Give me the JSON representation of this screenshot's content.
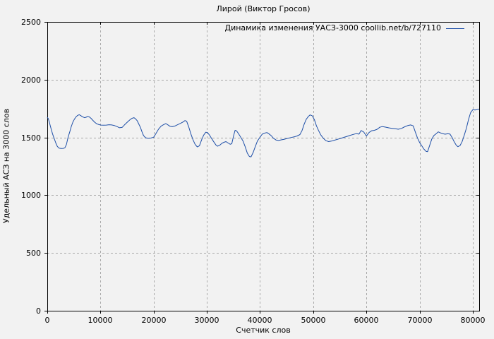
{
  "chart_data": {
    "type": "line",
    "title": "Лирой (Виктор Гросов)",
    "xlabel": "Счетчик слов",
    "ylabel": "Удельный АСЗ на 3000 слов",
    "legend_position": "top-right-inside",
    "grid": true,
    "background": "#f2f2f2",
    "grid_color": "#a9a9a9",
    "border_color": "#000000",
    "xlim": [
      0,
      81200
    ],
    "ylim": [
      0,
      2500
    ],
    "x_ticks": [
      0,
      10000,
      20000,
      30000,
      40000,
      50000,
      60000,
      70000,
      80000
    ],
    "y_ticks": [
      0,
      500,
      1000,
      1500,
      2000,
      2500
    ],
    "series": [
      {
        "name": "Динамика изменения УАСЗ-3000 coollib.net/b/727110",
        "color": "#1e4fa8",
        "points": [
          [
            0,
            1675
          ],
          [
            200,
            1662
          ],
          [
            400,
            1630
          ],
          [
            600,
            1595
          ],
          [
            800,
            1562
          ],
          [
            1000,
            1530
          ],
          [
            1300,
            1490
          ],
          [
            1600,
            1452
          ],
          [
            1900,
            1422
          ],
          [
            2200,
            1408
          ],
          [
            2600,
            1404
          ],
          [
            3000,
            1405
          ],
          [
            3300,
            1410
          ],
          [
            3600,
            1438
          ],
          [
            3900,
            1500
          ],
          [
            4200,
            1545
          ],
          [
            4500,
            1592
          ],
          [
            4800,
            1632
          ],
          [
            5100,
            1658
          ],
          [
            5400,
            1678
          ],
          [
            5700,
            1691
          ],
          [
            6000,
            1697
          ],
          [
            6300,
            1689
          ],
          [
            6600,
            1679
          ],
          [
            7000,
            1671
          ],
          [
            7300,
            1675
          ],
          [
            7600,
            1682
          ],
          [
            7900,
            1678
          ],
          [
            8200,
            1666
          ],
          [
            8500,
            1651
          ],
          [
            8900,
            1632
          ],
          [
            9300,
            1618
          ],
          [
            9700,
            1611
          ],
          [
            10100,
            1607
          ],
          [
            10600,
            1606
          ],
          [
            11100,
            1607
          ],
          [
            11600,
            1610
          ],
          [
            12100,
            1608
          ],
          [
            12600,
            1603
          ],
          [
            13100,
            1594
          ],
          [
            13600,
            1584
          ],
          [
            14100,
            1588
          ],
          [
            14500,
            1608
          ],
          [
            15000,
            1630
          ],
          [
            15500,
            1651
          ],
          [
            15900,
            1665
          ],
          [
            16300,
            1671
          ],
          [
            16600,
            1661
          ],
          [
            16900,
            1645
          ],
          [
            17200,
            1617
          ],
          [
            17500,
            1588
          ],
          [
            17800,
            1548
          ],
          [
            18100,
            1516
          ],
          [
            18500,
            1497
          ],
          [
            19000,
            1492
          ],
          [
            19500,
            1495
          ],
          [
            20000,
            1502
          ],
          [
            20400,
            1532
          ],
          [
            20900,
            1570
          ],
          [
            21400,
            1598
          ],
          [
            21900,
            1612
          ],
          [
            22300,
            1620
          ],
          [
            22700,
            1608
          ],
          [
            23100,
            1596
          ],
          [
            23500,
            1593
          ],
          [
            24000,
            1599
          ],
          [
            24500,
            1610
          ],
          [
            25000,
            1621
          ],
          [
            25500,
            1633
          ],
          [
            25900,
            1646
          ],
          [
            26200,
            1640
          ],
          [
            26600,
            1590
          ],
          [
            27000,
            1530
          ],
          [
            27400,
            1480
          ],
          [
            27800,
            1440
          ],
          [
            28200,
            1418
          ],
          [
            28600,
            1428
          ],
          [
            29000,
            1478
          ],
          [
            29400,
            1520
          ],
          [
            29800,
            1545
          ],
          [
            30100,
            1543
          ],
          [
            30500,
            1520
          ],
          [
            30900,
            1490
          ],
          [
            31300,
            1462
          ],
          [
            31700,
            1435
          ],
          [
            32000,
            1424
          ],
          [
            32400,
            1432
          ],
          [
            32800,
            1448
          ],
          [
            33200,
            1458
          ],
          [
            33600,
            1464
          ],
          [
            34000,
            1452
          ],
          [
            34400,
            1441
          ],
          [
            34700,
            1446
          ],
          [
            35000,
            1510
          ],
          [
            35300,
            1562
          ],
          [
            35600,
            1556
          ],
          [
            36000,
            1530
          ],
          [
            36400,
            1500
          ],
          [
            36800,
            1468
          ],
          [
            37200,
            1420
          ],
          [
            37600,
            1365
          ],
          [
            38000,
            1335
          ],
          [
            38300,
            1332
          ],
          [
            38700,
            1370
          ],
          [
            39100,
            1420
          ],
          [
            39500,
            1468
          ],
          [
            40000,
            1503
          ],
          [
            40400,
            1528
          ],
          [
            40900,
            1538
          ],
          [
            41300,
            1542
          ],
          [
            41700,
            1530
          ],
          [
            42100,
            1515
          ],
          [
            42500,
            1494
          ],
          [
            43000,
            1478
          ],
          [
            43500,
            1474
          ],
          [
            44000,
            1479
          ],
          [
            44600,
            1485
          ],
          [
            45200,
            1492
          ],
          [
            45800,
            1499
          ],
          [
            46400,
            1505
          ],
          [
            47000,
            1513
          ],
          [
            47500,
            1525
          ],
          [
            47900,
            1560
          ],
          [
            48300,
            1615
          ],
          [
            48700,
            1658
          ],
          [
            49100,
            1683
          ],
          [
            49400,
            1695
          ],
          [
            49800,
            1688
          ],
          [
            50200,
            1655
          ],
          [
            50600,
            1600
          ],
          [
            51000,
            1560
          ],
          [
            51400,
            1523
          ],
          [
            51900,
            1492
          ],
          [
            52400,
            1472
          ],
          [
            52900,
            1464
          ],
          [
            53400,
            1468
          ],
          [
            54000,
            1476
          ],
          [
            54600,
            1484
          ],
          [
            55200,
            1492
          ],
          [
            55800,
            1501
          ],
          [
            56400,
            1510
          ],
          [
            57000,
            1519
          ],
          [
            57600,
            1527
          ],
          [
            58100,
            1533
          ],
          [
            58600,
            1529
          ],
          [
            59000,
            1560
          ],
          [
            59500,
            1547
          ],
          [
            60000,
            1512
          ],
          [
            60500,
            1543
          ],
          [
            61000,
            1558
          ],
          [
            61500,
            1562
          ],
          [
            62000,
            1570
          ],
          [
            62500,
            1588
          ],
          [
            63000,
            1594
          ],
          [
            63600,
            1589
          ],
          [
            64200,
            1583
          ],
          [
            64800,
            1579
          ],
          [
            65400,
            1575
          ],
          [
            66000,
            1571
          ],
          [
            66600,
            1578
          ],
          [
            67200,
            1592
          ],
          [
            67800,
            1603
          ],
          [
            68300,
            1608
          ],
          [
            68800,
            1600
          ],
          [
            69200,
            1545
          ],
          [
            69600,
            1495
          ],
          [
            70000,
            1456
          ],
          [
            70400,
            1428
          ],
          [
            70800,
            1400
          ],
          [
            71200,
            1380
          ],
          [
            71500,
            1377
          ],
          [
            71900,
            1432
          ],
          [
            72300,
            1487
          ],
          [
            72700,
            1517
          ],
          [
            73100,
            1532
          ],
          [
            73500,
            1548
          ],
          [
            73900,
            1540
          ],
          [
            74300,
            1533
          ],
          [
            74800,
            1528
          ],
          [
            75300,
            1532
          ],
          [
            75700,
            1530
          ],
          [
            76100,
            1500
          ],
          [
            76500,
            1462
          ],
          [
            76900,
            1432
          ],
          [
            77200,
            1420
          ],
          [
            77600,
            1430
          ],
          [
            78000,
            1465
          ],
          [
            78400,
            1520
          ],
          [
            78800,
            1580
          ],
          [
            79200,
            1655
          ],
          [
            79600,
            1715
          ],
          [
            80000,
            1740
          ],
          [
            80400,
            1737
          ],
          [
            80800,
            1741
          ],
          [
            81200,
            1745
          ]
        ]
      }
    ]
  }
}
